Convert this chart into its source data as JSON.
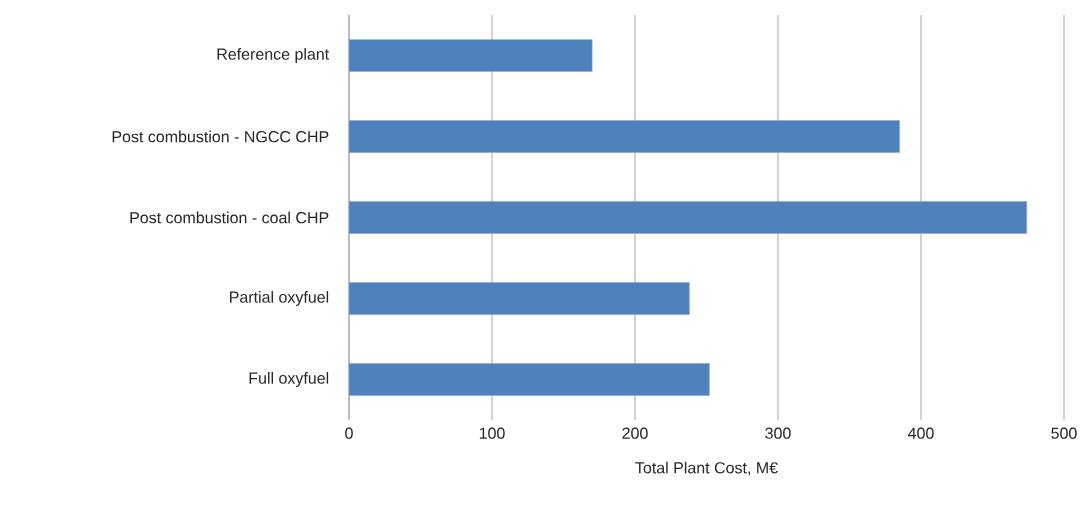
{
  "chart_data": {
    "type": "bar",
    "orientation": "horizontal",
    "xlabel": "Total Plant Cost, M€",
    "categories": [
      "Reference plant",
      "Post combustion - NGCC CHP",
      "Post combustion - coal CHP",
      "Partial oxyfuel",
      "Full oxyfuel"
    ],
    "values": [
      170,
      385,
      474,
      238,
      252
    ],
    "color": "#4f81bd",
    "xlim": [
      0,
      500
    ],
    "xticks": [
      0,
      100,
      200,
      300,
      400,
      500
    ],
    "grid": "x"
  }
}
